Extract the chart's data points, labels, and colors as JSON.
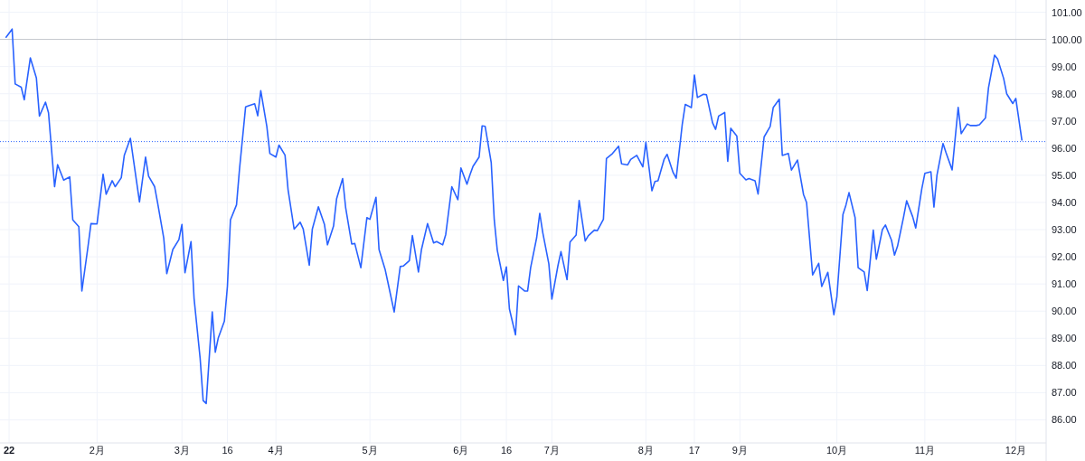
{
  "chart_data": {
    "type": "line",
    "xlim": [
      "2021-12-31",
      "2022-12-11"
    ],
    "xticks": [
      {
        "value": "2022-01-03",
        "label": "22"
      },
      {
        "value": "2022-02-01",
        "label": "2月"
      },
      {
        "value": "2022-03-01",
        "label": "3月"
      },
      {
        "value": "2022-03-16",
        "label": "16"
      },
      {
        "value": "2022-04-01",
        "label": "4月"
      },
      {
        "value": "2022-05-02",
        "label": "5月"
      },
      {
        "value": "2022-06-01",
        "label": "6月"
      },
      {
        "value": "2022-06-16",
        "label": "16"
      },
      {
        "value": "2022-07-01",
        "label": "7月"
      },
      {
        "value": "2022-08-01",
        "label": "8月"
      },
      {
        "value": "2022-08-17",
        "label": "17"
      },
      {
        "value": "2022-09-01",
        "label": "9月"
      },
      {
        "value": "2022-10-03",
        "label": "10月"
      },
      {
        "value": "2022-11-01",
        "label": "11月"
      },
      {
        "value": "2022-12-01",
        "label": "12月"
      }
    ],
    "ylim": [
      85.15,
      101.45
    ],
    "yticks": [
      {
        "value": 86,
        "label": "86.00"
      },
      {
        "value": 87,
        "label": "87.00"
      },
      {
        "value": 88,
        "label": "88.00"
      },
      {
        "value": 89,
        "label": "89.00"
      },
      {
        "value": 90,
        "label": "90.00"
      },
      {
        "value": 91,
        "label": "91.00"
      },
      {
        "value": 92,
        "label": "92.00"
      },
      {
        "value": 93,
        "label": "93.00"
      },
      {
        "value": 94,
        "label": "94.00"
      },
      {
        "value": 95,
        "label": "95.00"
      },
      {
        "value": 96,
        "label": "96.00"
      },
      {
        "value": 97,
        "label": "97.00"
      },
      {
        "value": 98,
        "label": "98.00"
      },
      {
        "value": 99,
        "label": "99.00"
      },
      {
        "value": 100,
        "label": "100.00"
      },
      {
        "value": 101,
        "label": "101.00"
      }
    ],
    "grid": true,
    "marker": "none",
    "line_style": "solid",
    "ref_lines": [
      {
        "axis": "y",
        "value": 100,
        "color": "#c4c6cc",
        "line_style": "solid"
      },
      {
        "axis": "y",
        "value": 96.24,
        "color": "#2962ff",
        "line_style": "dotted"
      }
    ],
    "series": [
      {
        "color": "#2962ff",
        "x": [
          "2022-01-02",
          "2022-01-04",
          "2022-01-05",
          "2022-01-07",
          "2022-01-08",
          "2022-01-10",
          "2022-01-12",
          "2022-01-13",
          "2022-01-15",
          "2022-01-16",
          "2022-01-18",
          "2022-01-19",
          "2022-01-21",
          "2022-01-23",
          "2022-01-24",
          "2022-01-26",
          "2022-01-27",
          "2022-01-29",
          "2022-01-30",
          "2022-02-01",
          "2022-02-03",
          "2022-02-04",
          "2022-02-06",
          "2022-02-07",
          "2022-02-09",
          "2022-02-10",
          "2022-02-12",
          "2022-02-14",
          "2022-02-15",
          "2022-02-17",
          "2022-02-18",
          "2022-02-20",
          "2022-02-21",
          "2022-02-23",
          "2022-02-24",
          "2022-02-26",
          "2022-02-28",
          "2022-03-01",
          "2022-03-02",
          "2022-03-04",
          "2022-03-05",
          "2022-03-07",
          "2022-03-08",
          "2022-03-09",
          "2022-03-11",
          "2022-03-12",
          "2022-03-13",
          "2022-03-15",
          "2022-03-16",
          "2022-03-17",
          "2022-03-19",
          "2022-03-20",
          "2022-03-22",
          "2022-03-23",
          "2022-03-25",
          "2022-03-26",
          "2022-03-27",
          "2022-03-29",
          "2022-03-30",
          "2022-04-01",
          "2022-04-02",
          "2022-04-04",
          "2022-04-05",
          "2022-04-07",
          "2022-04-09",
          "2022-04-10",
          "2022-04-12",
          "2022-04-13",
          "2022-04-15",
          "2022-04-17",
          "2022-04-18",
          "2022-04-20",
          "2022-04-21",
          "2022-04-23",
          "2022-04-24",
          "2022-04-26",
          "2022-04-27",
          "2022-04-29",
          "2022-05-01",
          "2022-05-02",
          "2022-05-04",
          "2022-05-05",
          "2022-05-07",
          "2022-05-08",
          "2022-05-10",
          "2022-05-12",
          "2022-05-13",
          "2022-05-15",
          "2022-05-16",
          "2022-05-18",
          "2022-05-19",
          "2022-05-21",
          "2022-05-23",
          "2022-05-24",
          "2022-05-26",
          "2022-05-27",
          "2022-05-29",
          "2022-05-31",
          "2022-06-01",
          "2022-06-03",
          "2022-06-04",
          "2022-06-05",
          "2022-06-07",
          "2022-06-08",
          "2022-06-09",
          "2022-06-11",
          "2022-06-12",
          "2022-06-13",
          "2022-06-15",
          "2022-06-16",
          "2022-06-17",
          "2022-06-19",
          "2022-06-20",
          "2022-06-22",
          "2022-06-23",
          "2022-06-24",
          "2022-06-26",
          "2022-06-27",
          "2022-06-28",
          "2022-06-30",
          "2022-07-01",
          "2022-07-03",
          "2022-07-04",
          "2022-07-06",
          "2022-07-07",
          "2022-07-09",
          "2022-07-10",
          "2022-07-12",
          "2022-07-13",
          "2022-07-15",
          "2022-07-16",
          "2022-07-18",
          "2022-07-19",
          "2022-07-21",
          "2022-07-23",
          "2022-07-24",
          "2022-07-26",
          "2022-07-27",
          "2022-07-29",
          "2022-07-31",
          "2022-08-01",
          "2022-08-03",
          "2022-08-04",
          "2022-08-05",
          "2022-08-07",
          "2022-08-08",
          "2022-08-10",
          "2022-08-11",
          "2022-08-13",
          "2022-08-14",
          "2022-08-16",
          "2022-08-17",
          "2022-08-18",
          "2022-08-20",
          "2022-08-21",
          "2022-08-23",
          "2022-08-24",
          "2022-08-25",
          "2022-08-27",
          "2022-08-28",
          "2022-08-29",
          "2022-08-31",
          "2022-09-01",
          "2022-09-03",
          "2022-09-04",
          "2022-09-06",
          "2022-09-07",
          "2022-09-09",
          "2022-09-11",
          "2022-09-12",
          "2022-09-14",
          "2022-09-15",
          "2022-09-17",
          "2022-09-18",
          "2022-09-20",
          "2022-09-22",
          "2022-09-23",
          "2022-09-25",
          "2022-09-27",
          "2022-09-28",
          "2022-09-30",
          "2022-10-02",
          "2022-10-03",
          "2022-10-05",
          "2022-10-06",
          "2022-10-07",
          "2022-10-09",
          "2022-10-10",
          "2022-10-12",
          "2022-10-13",
          "2022-10-15",
          "2022-10-16",
          "2022-10-18",
          "2022-10-19",
          "2022-10-21",
          "2022-10-22",
          "2022-10-23",
          "2022-10-25",
          "2022-10-26",
          "2022-10-28",
          "2022-10-29",
          "2022-10-31",
          "2022-11-01",
          "2022-11-03",
          "2022-11-04",
          "2022-11-05",
          "2022-11-07",
          "2022-11-08",
          "2022-11-10",
          "2022-11-12",
          "2022-11-13",
          "2022-11-15",
          "2022-11-16",
          "2022-11-18",
          "2022-11-19",
          "2022-11-21",
          "2022-11-22",
          "2022-11-24",
          "2022-11-25",
          "2022-11-27",
          "2022-11-28",
          "2022-11-30",
          "2022-12-01",
          "2022-12-03"
        ],
        "values": [
          100.08,
          100.38,
          98.36,
          98.24,
          97.78,
          99.32,
          98.58,
          97.18,
          97.69,
          97.3,
          94.58,
          95.39,
          94.82,
          94.94,
          93.36,
          93.11,
          90.74,
          92.36,
          93.22,
          93.21,
          95.04,
          94.3,
          94.8,
          94.58,
          94.91,
          95.74,
          96.36,
          94.8,
          94.02,
          95.67,
          94.97,
          94.58,
          93.97,
          92.69,
          91.38,
          92.27,
          92.63,
          93.19,
          91.41,
          92.56,
          90.47,
          88.27,
          86.71,
          86.6,
          89.97,
          88.49,
          89.02,
          89.63,
          90.91,
          93.36,
          93.91,
          95.24,
          97.52,
          97.56,
          97.63,
          97.19,
          98.11,
          96.8,
          95.8,
          95.67,
          96.11,
          95.74,
          94.47,
          93.02,
          93.27,
          93.02,
          91.69,
          93.02,
          93.84,
          93.19,
          92.44,
          93.13,
          94.13,
          94.88,
          93.8,
          92.47,
          92.49,
          91.6,
          93.44,
          93.38,
          94.19,
          92.27,
          91.54,
          91.02,
          89.97,
          91.64,
          91.66,
          91.86,
          92.78,
          91.44,
          92.27,
          93.22,
          92.51,
          92.56,
          92.44,
          92.82,
          94.58,
          94.1,
          95.27,
          94.67,
          95.02,
          95.33,
          95.67,
          96.82,
          96.8,
          95.47,
          93.36,
          92.24,
          91.13,
          91.63,
          90.08,
          89.13,
          90.93,
          90.74,
          90.74,
          91.6,
          92.71,
          93.6,
          92.89,
          91.74,
          90.44,
          91.67,
          92.19,
          91.16,
          92.54,
          92.8,
          94.07,
          92.58,
          92.77,
          92.98,
          92.96,
          93.38,
          95.62,
          95.8,
          96.07,
          95.42,
          95.38,
          95.58,
          95.73,
          95.31,
          96.21,
          94.43,
          94.77,
          94.8,
          95.58,
          95.77,
          95.1,
          94.89,
          96.87,
          97.61,
          97.49,
          98.69,
          97.86,
          97.98,
          97.96,
          96.93,
          96.69,
          97.18,
          97.31,
          95.51,
          96.73,
          96.44,
          95.07,
          94.83,
          94.88,
          94.8,
          94.31,
          96.41,
          96.8,
          97.49,
          97.8,
          95.73,
          95.8,
          95.19,
          95.56,
          94.29,
          94.0,
          91.33,
          91.76,
          90.91,
          91.43,
          89.87,
          90.53,
          93.56,
          93.91,
          94.36,
          93.44,
          91.6,
          91.44,
          90.76,
          92.98,
          91.91,
          93.0,
          93.17,
          92.61,
          92.06,
          92.39,
          93.47,
          94.06,
          93.47,
          93.06,
          94.5,
          95.07,
          95.13,
          93.83,
          95.0,
          96.17,
          95.83,
          95.2,
          97.5,
          96.53,
          96.89,
          96.83,
          96.83,
          96.86,
          97.11,
          98.22,
          99.42,
          99.28,
          98.56,
          98.0,
          97.64,
          97.83,
          96.3
        ]
      }
    ]
  }
}
